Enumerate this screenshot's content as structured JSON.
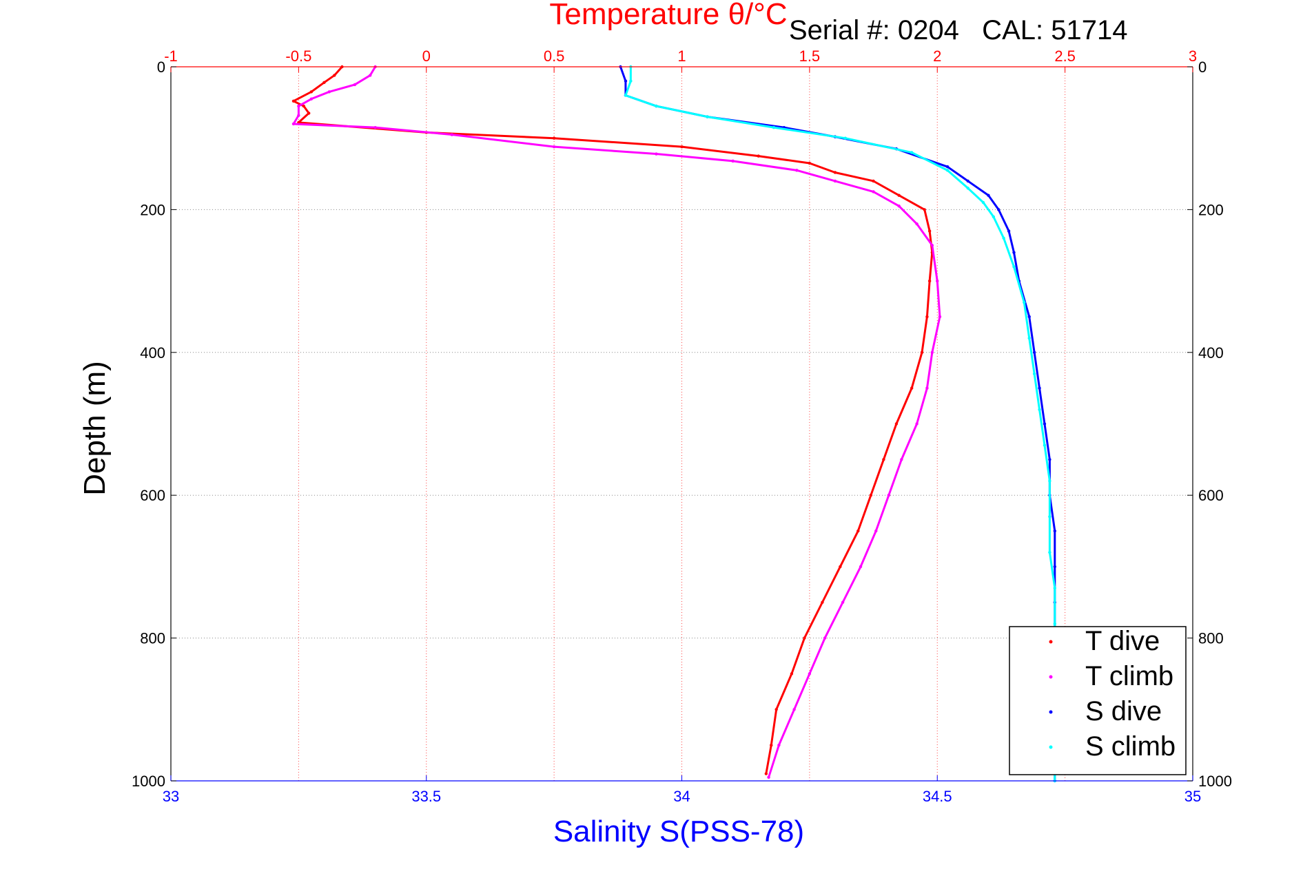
{
  "chart_data": {
    "type": "scatter",
    "title": "Temperature θ/°C",
    "annotation": "Serial #: 0204   CAL: 51714",
    "xlabel": "Salinity S(PSS-78)",
    "x2label": "Temperature θ/°C",
    "ylabel": "Depth (m)",
    "xlim": [
      33,
      35
    ],
    "x2lim": [
      -1,
      3
    ],
    "ylim": [
      0,
      1000
    ],
    "y_reversed": true,
    "grid": true,
    "legend_placement": "bottom-right",
    "x_ticks": [
      "33",
      "33.5",
      "34",
      "34.5",
      "35"
    ],
    "x2_ticks": [
      "-1",
      "-0.5",
      "0",
      "0.5",
      "1",
      "1.5",
      "2",
      "2.5",
      "3"
    ],
    "y_ticks": [
      "0",
      "200",
      "400",
      "600",
      "800",
      "1000"
    ],
    "colors": {
      "t_dive": "#ff0000",
      "t_climb": "#ff00ff",
      "s_dive": "#0000ff",
      "s_climb": "#00ffff",
      "bottom_axis": "#0000ff",
      "top_axis": "#ff0000",
      "left_axis": "#000000"
    },
    "series": [
      {
        "name": "T dive",
        "axis": "temperature",
        "color": "#ff0000",
        "points": [
          [
            -0.33,
            0
          ],
          [
            -0.36,
            12
          ],
          [
            -0.4,
            22
          ],
          [
            -0.45,
            35
          ],
          [
            -0.52,
            48
          ],
          [
            -0.48,
            55
          ],
          [
            -0.46,
            65
          ],
          [
            -0.5,
            78
          ],
          [
            0.0,
            92
          ],
          [
            0.5,
            100
          ],
          [
            1.0,
            112
          ],
          [
            1.3,
            125
          ],
          [
            1.5,
            135
          ],
          [
            1.6,
            148
          ],
          [
            1.75,
            160
          ],
          [
            1.85,
            180
          ],
          [
            1.95,
            200
          ],
          [
            1.97,
            230
          ],
          [
            1.98,
            260
          ],
          [
            1.97,
            300
          ],
          [
            1.96,
            350
          ],
          [
            1.94,
            400
          ],
          [
            1.9,
            450
          ],
          [
            1.84,
            500
          ],
          [
            1.79,
            550
          ],
          [
            1.74,
            600
          ],
          [
            1.69,
            650
          ],
          [
            1.62,
            700
          ],
          [
            1.55,
            750
          ],
          [
            1.48,
            800
          ],
          [
            1.43,
            850
          ],
          [
            1.37,
            900
          ],
          [
            1.35,
            950
          ],
          [
            1.33,
            990
          ]
        ]
      },
      {
        "name": "T climb",
        "axis": "temperature",
        "color": "#ff00ff",
        "points": [
          [
            -0.2,
            0
          ],
          [
            -0.22,
            12
          ],
          [
            -0.28,
            25
          ],
          [
            -0.38,
            35
          ],
          [
            -0.45,
            45
          ],
          [
            -0.5,
            55
          ],
          [
            -0.5,
            68
          ],
          [
            -0.52,
            80
          ],
          [
            -0.2,
            85
          ],
          [
            0.1,
            95
          ],
          [
            0.5,
            112
          ],
          [
            0.9,
            122
          ],
          [
            1.2,
            132
          ],
          [
            1.45,
            145
          ],
          [
            1.6,
            160
          ],
          [
            1.75,
            175
          ],
          [
            1.85,
            195
          ],
          [
            1.92,
            220
          ],
          [
            1.98,
            250
          ],
          [
            2.0,
            300
          ],
          [
            2.01,
            350
          ],
          [
            1.98,
            400
          ],
          [
            1.96,
            450
          ],
          [
            1.92,
            500
          ],
          [
            1.86,
            550
          ],
          [
            1.81,
            600
          ],
          [
            1.76,
            650
          ],
          [
            1.7,
            700
          ],
          [
            1.63,
            750
          ],
          [
            1.56,
            800
          ],
          [
            1.5,
            850
          ],
          [
            1.44,
            900
          ],
          [
            1.38,
            950
          ],
          [
            1.34,
            995
          ]
        ]
      },
      {
        "name": "S dive",
        "axis": "salinity",
        "color": "#0000ff",
        "points": [
          [
            33.88,
            0
          ],
          [
            33.89,
            20
          ],
          [
            33.89,
            40
          ],
          [
            33.95,
            55
          ],
          [
            34.05,
            70
          ],
          [
            34.2,
            85
          ],
          [
            34.3,
            98
          ],
          [
            34.42,
            115
          ],
          [
            34.52,
            140
          ],
          [
            34.56,
            160
          ],
          [
            34.6,
            180
          ],
          [
            34.62,
            200
          ],
          [
            34.64,
            230
          ],
          [
            34.65,
            260
          ],
          [
            34.66,
            300
          ],
          [
            34.68,
            350
          ],
          [
            34.69,
            400
          ],
          [
            34.7,
            450
          ],
          [
            34.71,
            500
          ],
          [
            34.72,
            550
          ],
          [
            34.72,
            600
          ],
          [
            34.73,
            650
          ],
          [
            34.73,
            700
          ],
          [
            34.73,
            750
          ],
          [
            34.73,
            800
          ],
          [
            34.73,
            850
          ],
          [
            34.73,
            900
          ],
          [
            34.73,
            950
          ],
          [
            34.73,
            1000
          ]
        ]
      },
      {
        "name": "S climb",
        "axis": "salinity",
        "color": "#00ffff",
        "points": [
          [
            33.9,
            0
          ],
          [
            33.9,
            20
          ],
          [
            33.89,
            40
          ],
          [
            33.95,
            55
          ],
          [
            34.05,
            70
          ],
          [
            34.18,
            85
          ],
          [
            34.32,
            100
          ],
          [
            34.45,
            120
          ],
          [
            34.52,
            145
          ],
          [
            34.56,
            170
          ],
          [
            34.59,
            190
          ],
          [
            34.61,
            210
          ],
          [
            34.63,
            240
          ],
          [
            34.65,
            280
          ],
          [
            34.67,
            330
          ],
          [
            34.68,
            380
          ],
          [
            34.69,
            430
          ],
          [
            34.7,
            480
          ],
          [
            34.71,
            530
          ],
          [
            34.72,
            580
          ],
          [
            34.72,
            630
          ],
          [
            34.72,
            680
          ],
          [
            34.73,
            730
          ],
          [
            34.73,
            780
          ],
          [
            34.73,
            830
          ],
          [
            34.73,
            880
          ],
          [
            34.73,
            930
          ],
          [
            34.73,
            1000
          ]
        ]
      }
    ]
  }
}
